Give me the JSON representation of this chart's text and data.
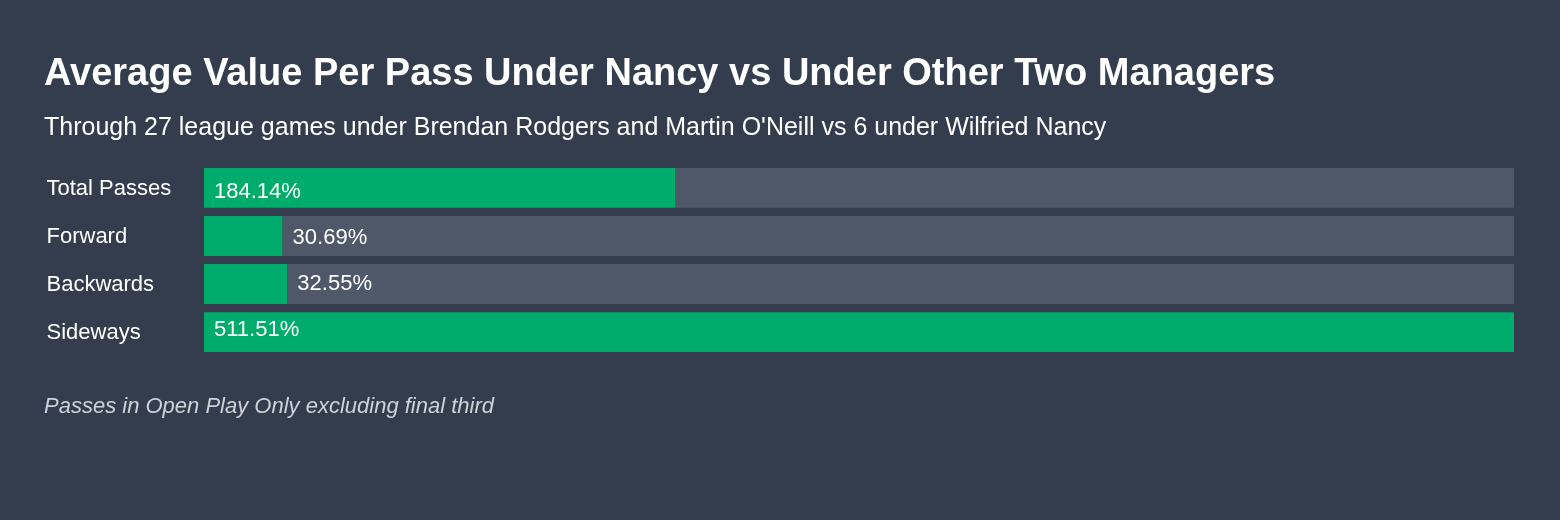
{
  "chart_data": {
    "type": "bar",
    "orientation": "horizontal",
    "stacked": true,
    "title": "Average Value Per Pass Under Nancy vs Under Other Two Managers",
    "subtitle": "Through 27 league games under Brendan Rodgers and Martin O'Neill vs 6 under Wilfried Nancy",
    "categories": [
      "Total Passes",
      "Forward",
      "Backwards",
      "Sideways"
    ],
    "series": [
      {
        "color": "#00ac6b",
        "values": [
          184.14,
          30.69,
          32.55,
          511.51
        ],
        "value_labels": [
          "184.14%",
          "30.69%",
          "32.55%",
          "511.51%"
        ]
      },
      {
        "color": "#4e5868",
        "values": [
          327.37,
          480.82,
          478.96,
          0
        ]
      }
    ],
    "annotations": [
      "Passes in Open Play Only excluding final third"
    ],
    "legend": false,
    "grid": false
  }
}
